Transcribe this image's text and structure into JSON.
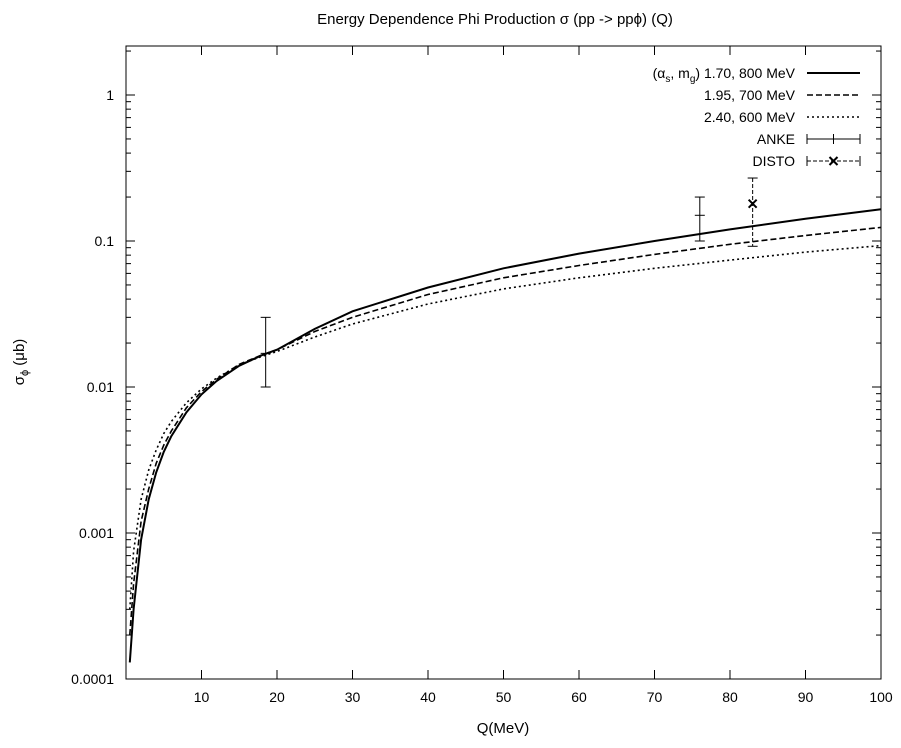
{
  "chart_data": {
    "type": "line",
    "title": "Energy Dependence Phi Production σ (pp -> ppϕ) (Q)",
    "xlabel": "Q(MeV)",
    "ylabel": "σ",
    "ylabel_sub": "ϕ",
    "ylabel_unit": " (μb)",
    "xlim": [
      0,
      100
    ],
    "ylim": [
      0.0001,
      2
    ],
    "yscale": "log",
    "grid": false,
    "legend_position": "top-right",
    "legend_header": "(α",
    "legend_header_sub1": "s",
    "legend_header_mid": ", m",
    "legend_header_sub2": "g",
    "legend_header_end": ")",
    "x_ticks": [
      10,
      20,
      30,
      40,
      50,
      60,
      70,
      80,
      90,
      100
    ],
    "x_tick_labels": [
      "10",
      "20",
      "30",
      "40",
      "50",
      "60",
      "70",
      "80",
      "90",
      "100"
    ],
    "y_ticks": [
      0.0001,
      0.001,
      0.01,
      0.1,
      1
    ],
    "y_tick_labels": [
      "0.0001",
      "0.001",
      "0.01",
      "0.1",
      "1"
    ],
    "series": [
      {
        "name": "1.70, 800 MeV",
        "style": "solid",
        "x": [
          0.5,
          1,
          2,
          3,
          4,
          5,
          6,
          8,
          10,
          12,
          15,
          18,
          20,
          25,
          30,
          40,
          50,
          60,
          70,
          80,
          90,
          100
        ],
        "values": [
          0.00013,
          0.0003,
          0.0009,
          0.0017,
          0.0026,
          0.0036,
          0.0046,
          0.0067,
          0.0089,
          0.011,
          0.014,
          0.0165,
          0.018,
          0.025,
          0.033,
          0.048,
          0.065,
          0.082,
          0.1,
          0.12,
          0.142,
          0.165
        ]
      },
      {
        "name": "1.95, 700 MeV",
        "style": "dashed",
        "x": [
          0.5,
          1,
          2,
          3,
          4,
          5,
          6,
          8,
          10,
          12,
          15,
          18,
          20,
          25,
          30,
          40,
          50,
          60,
          70,
          80,
          90,
          100
        ],
        "values": [
          0.0002,
          0.00045,
          0.0012,
          0.002,
          0.003,
          0.004,
          0.005,
          0.0072,
          0.0093,
          0.0113,
          0.0143,
          0.0166,
          0.018,
          0.024,
          0.03,
          0.043,
          0.056,
          0.068,
          0.081,
          0.095,
          0.109,
          0.124
        ]
      },
      {
        "name": "2.40, 600 MeV",
        "style": "dotted",
        "x": [
          0.5,
          1,
          2,
          3,
          4,
          5,
          6,
          8,
          10,
          12,
          15,
          18,
          20,
          25,
          30,
          40,
          50,
          60,
          70,
          80,
          90,
          100
        ],
        "values": [
          0.0003,
          0.00075,
          0.0017,
          0.0027,
          0.0037,
          0.0048,
          0.0058,
          0.0078,
          0.0097,
          0.0115,
          0.0142,
          0.0162,
          0.0175,
          0.022,
          0.027,
          0.037,
          0.047,
          0.056,
          0.065,
          0.074,
          0.084,
          0.093
        ]
      }
    ],
    "points": [
      {
        "name": "ANKE",
        "style": "plus",
        "data": [
          {
            "x": 18.5,
            "y": 0.017,
            "ylow": 0.01,
            "yhigh": 0.03
          },
          {
            "x": 76,
            "y": 0.15,
            "ylow": 0.1,
            "yhigh": 0.2
          }
        ]
      },
      {
        "name": "DISTO",
        "style": "cross",
        "data": [
          {
            "x": 83,
            "y": 0.18,
            "ylow": 0.092,
            "yhigh": 0.27
          }
        ]
      }
    ]
  }
}
